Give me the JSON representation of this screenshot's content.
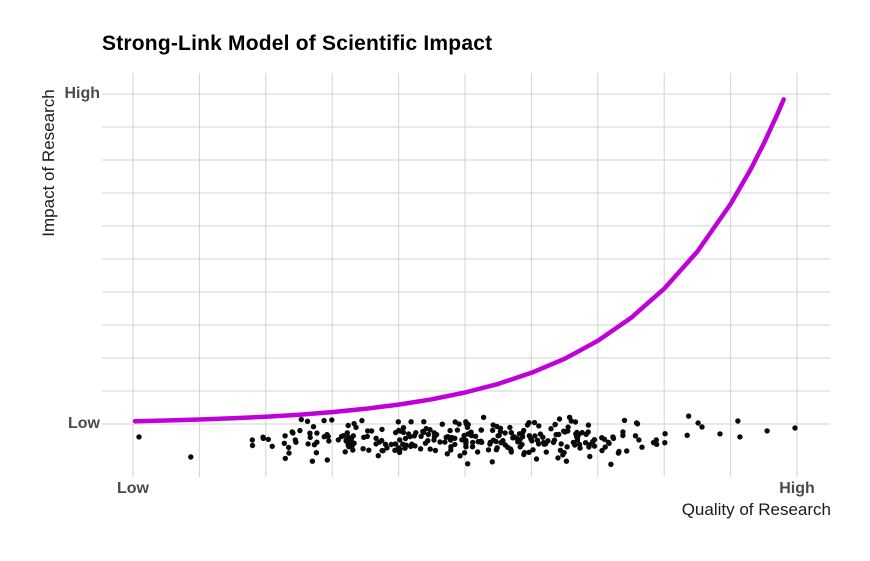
{
  "chart": {
    "title": "Strong-Link Model of Scientific Impact",
    "x_axis": {
      "label": "Quality of Research",
      "tick_low": "Low",
      "tick_high": "High"
    },
    "y_axis": {
      "label": "Impact of Research",
      "tick_low": "Low",
      "tick_high": "High"
    },
    "colors": {
      "background": "#FFFFFF",
      "grid": "#D3D3D3",
      "curve": "#C000D8",
      "points": "#0A0A0A",
      "title_text": "#000000",
      "axis_title_text": "#1A1A1A",
      "tick_text": "#4A4A4A"
    }
  },
  "chart_data": {
    "type": "scatter",
    "title": "Strong-Link Model of Scientific Impact",
    "xlabel": "Quality of Research",
    "ylabel": "Impact of Research",
    "x_tick_labels": [
      "Low",
      "High"
    ],
    "y_tick_labels": [
      "Low",
      "High"
    ],
    "xlim": [
      0,
      1
    ],
    "ylim": [
      0,
      1
    ],
    "grid": "on",
    "grid_divisions": 10,
    "legend": "none",
    "series": [
      {
        "name": "strong-link-impact-curve",
        "type": "line",
        "color": "#C000D8",
        "stroke_width_px": 4.5,
        "formula": "impact = 0.0084 * exp(4.86 * quality)",
        "points": [
          [
            0.003,
            0.0085
          ],
          [
            0.05,
            0.0107
          ],
          [
            0.1,
            0.0137
          ],
          [
            0.15,
            0.0174
          ],
          [
            0.2,
            0.0222
          ],
          [
            0.25,
            0.0283
          ],
          [
            0.3,
            0.0361
          ],
          [
            0.35,
            0.046
          ],
          [
            0.4,
            0.0587
          ],
          [
            0.45,
            0.0748
          ],
          [
            0.5,
            0.0954
          ],
          [
            0.55,
            0.1216
          ],
          [
            0.6,
            0.1551
          ],
          [
            0.65,
            0.1977
          ],
          [
            0.7,
            0.2522
          ],
          [
            0.75,
            0.3216
          ],
          [
            0.8,
            0.4101
          ],
          [
            0.85,
            0.5227
          ],
          [
            0.9,
            0.6668
          ],
          [
            0.93,
            0.771
          ],
          [
            0.95,
            0.8501
          ],
          [
            0.97,
            0.9373
          ],
          [
            0.98,
            0.9836
          ]
        ]
      },
      {
        "name": "papers-scatter",
        "type": "scatter",
        "color": "#0A0A0A",
        "marker_radius_px": 2.7,
        "description": "Cloud of ~295 black points jittered in a horizontal band just below the Low impact line, spanning the quality axis; dense in the middle, sparse at both extremes.",
        "explicit_points": [
          [
            0.009,
            -0.039
          ],
          [
            0.087,
            -0.1
          ],
          [
            0.851,
            0.003
          ],
          [
            0.857,
            -0.009
          ],
          [
            0.884,
            -0.03
          ],
          [
            0.911,
            0.009
          ],
          [
            0.914,
            -0.039
          ],
          [
            0.955,
            -0.021
          ],
          [
            0.997,
            -0.012
          ]
        ],
        "generated_cloud": {
          "seed": 42,
          "count": 285,
          "x": {
            "base": 0.145,
            "span": 0.705,
            "w1": 0.35,
            "w2": 0.65
          },
          "y": {
            "center": -0.046,
            "spread": 0.17
          }
        }
      }
    ]
  }
}
